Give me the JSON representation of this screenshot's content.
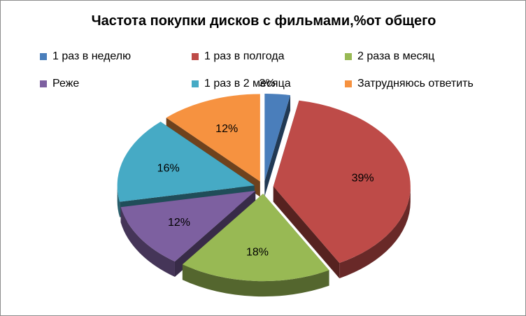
{
  "chart_data": {
    "type": "pie",
    "title": "Частота покупки дисков с фильмами,%от общего",
    "legend_position": "top",
    "slices": [
      {
        "label": "1 раз в неделю",
        "value": 3,
        "value_label": "3%",
        "color": "#4a7ebb",
        "exploded": true
      },
      {
        "label": "1 раз в полгода",
        "value": 39,
        "value_label": "39%",
        "color": "#be4b48",
        "exploded": true
      },
      {
        "label": "2 раза в месяц",
        "value": 18,
        "value_label": "18%",
        "color": "#98b954",
        "exploded": true
      },
      {
        "label": "Реже",
        "value": 12,
        "value_label": "12%",
        "color": "#7d60a0",
        "exploded": true
      },
      {
        "label": "1 раз в 2 месяца",
        "value": 16,
        "value_label": "16%",
        "color": "#46aac5",
        "exploded": true
      },
      {
        "label": "Затрудняюсь ответить",
        "value": 12,
        "value_label": "12%",
        "color": "#f69240",
        "exploded": true
      }
    ]
  }
}
